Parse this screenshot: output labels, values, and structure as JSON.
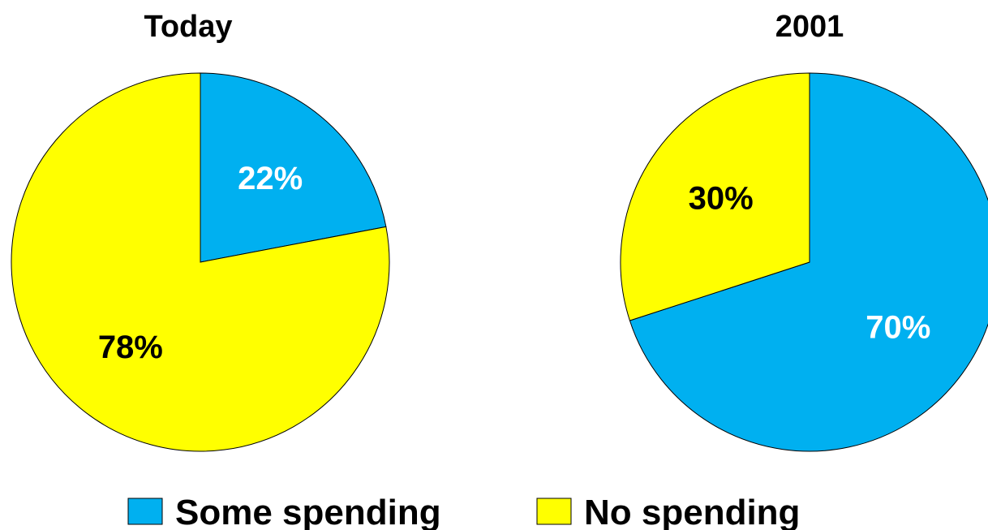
{
  "chart_data": [
    {
      "type": "pie",
      "title": "Today",
      "slices": [
        {
          "label": "Some spending",
          "value": 22,
          "value_label": "22%",
          "color": "#00B0F0",
          "label_color": "#FFFFFF"
        },
        {
          "label": "No spending",
          "value": 78,
          "value_label": "78%",
          "color": "#FFFF00",
          "label_color": "#000000"
        }
      ]
    },
    {
      "type": "pie",
      "title": "2001",
      "slices": [
        {
          "label": "Some spending",
          "value": 70,
          "value_label": "70%",
          "color": "#00B0F0",
          "label_color": "#FFFFFF"
        },
        {
          "label": "No spending",
          "value": 30,
          "value_label": "30%",
          "color": "#FFFF00",
          "label_color": "#000000"
        }
      ]
    }
  ],
  "legend": {
    "placement": "bottom",
    "items": [
      {
        "label": "Some spending",
        "color": "#00B0F0"
      },
      {
        "label": "No spending",
        "color": "#FFFF00"
      }
    ]
  }
}
